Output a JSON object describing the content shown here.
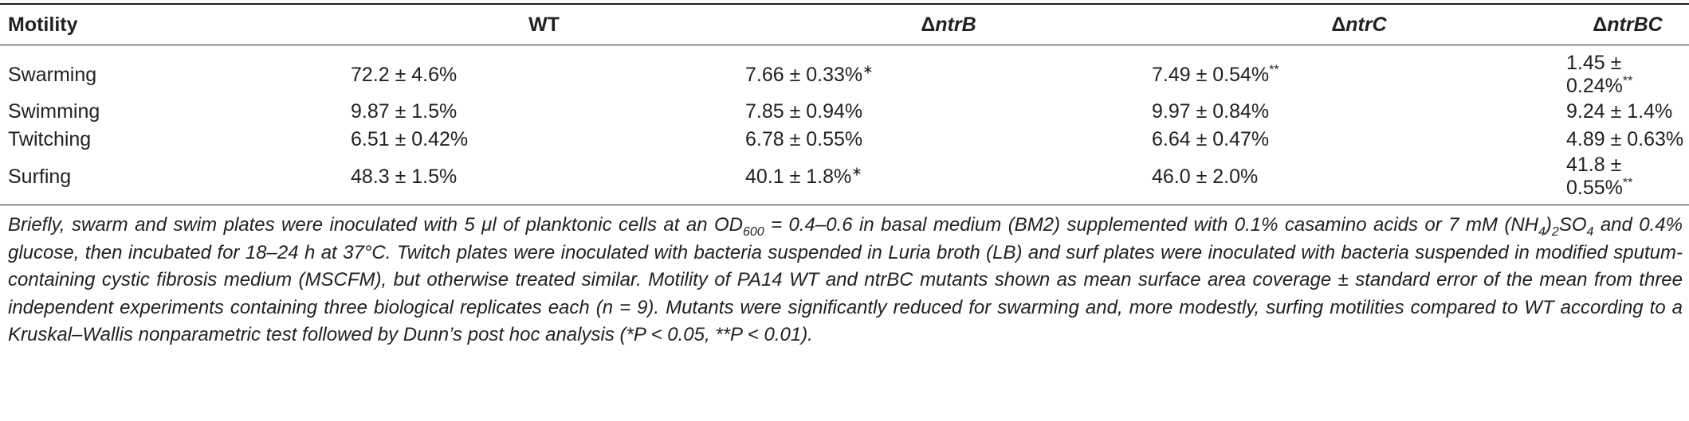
{
  "table": {
    "header": [
      {
        "text": "Motility"
      },
      {
        "text": "WT"
      },
      {
        "symbol": "Δ",
        "gene": "ntrB"
      },
      {
        "symbol": "Δ",
        "gene": "ntrC"
      },
      {
        "symbol": "Δ",
        "gene": "ntrBC"
      }
    ],
    "rows": [
      [
        {
          "text": "Swarming"
        },
        {
          "text": "72.2 ± 4.6%"
        },
        {
          "text": "7.66 ± 0.33%",
          "note": "∗"
        },
        {
          "text": "7.49 ± 0.54%",
          "note": "**"
        },
        {
          "text": "1.45 ± 0.24%",
          "note": "**"
        }
      ],
      [
        {
          "text": "Swimming"
        },
        {
          "text": "9.87 ± 1.5%"
        },
        {
          "text": "7.85 ± 0.94%"
        },
        {
          "text": "9.97 ± 0.84%"
        },
        {
          "text": "9.24 ± 1.4%"
        }
      ],
      [
        {
          "text": "Twitching"
        },
        {
          "text": "6.51 ± 0.42%"
        },
        {
          "text": "6.78 ± 0.55%"
        },
        {
          "text": "6.64 ± 0.47%"
        },
        {
          "text": "4.89 ± 0.63%"
        }
      ],
      [
        {
          "text": "Surfing"
        },
        {
          "text": "48.3 ± 1.5%"
        },
        {
          "text": "40.1 ± 1.8%",
          "note": "∗"
        },
        {
          "text": "46.0 ± 2.0%"
        },
        {
          "text": "41.8 ± 0.55%",
          "note": "**"
        }
      ]
    ]
  },
  "footnote": {
    "parts": [
      "Briefly, swarm and swim plates were inoculated with 5 μl of planktonic cells at an OD",
      "600",
      " = 0.4–0.6 in basal medium (BM2) supplemented with 0.1% casamino acids or 7 mM (NH",
      "4",
      ")",
      "2",
      "SO",
      "4",
      " and 0.4% glucose, then incubated for 18–24 h at 37°C. Twitch plates were inoculated with bacteria suspended in Luria broth (LB) and surf plates were inoculated with bacteria suspended in modified sputum-containing cystic fibrosis medium (MSCFM), but otherwise treated similar. Motility of PA14 WT and ntrBC mutants shown as mean surface area coverage ± standard error of the mean from three independent experiments containing three biological replicates each (n = 9). Mutants were significantly reduced for swarming and, more modestly, surfing motilities compared to WT according to a Kruskal–Wallis nonparametric test followed by Dunn’s post hoc analysis (*P < 0.05, **P < 0.01)."
    ]
  }
}
